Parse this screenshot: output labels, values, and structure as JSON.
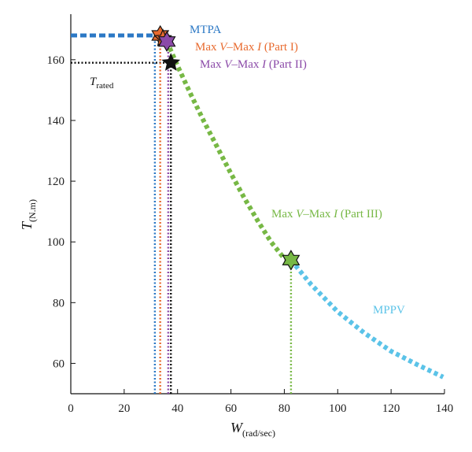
{
  "chart_data": {
    "type": "line",
    "xlabel": "W",
    "xlabel_sub": "(rad/sec)",
    "ylabel": "T",
    "ylabel_sub": "(N.m)",
    "xlim": [
      0,
      140
    ],
    "ylim": [
      50,
      175
    ],
    "x_ticks": [
      0,
      20,
      40,
      60,
      80,
      100,
      120,
      140
    ],
    "y_ticks": [
      60,
      80,
      100,
      120,
      140,
      160
    ],
    "grid": false,
    "series": [
      {
        "name": "Max V–Max I (Part III)",
        "color": "#77b845",
        "style": "dotted",
        "x": [
          36,
          40,
          45,
          50,
          55,
          60,
          65,
          70,
          75,
          80,
          82.5
        ],
        "y": [
          166,
          158,
          148.5,
          139.5,
          131,
          122.5,
          114.5,
          107,
          100,
          94.5,
          94
        ]
      },
      {
        "name": "MPPV",
        "color": "#5bc3e8",
        "style": "dotted",
        "x": [
          82.5,
          90,
          100,
          110,
          120,
          130,
          139.5
        ],
        "y": [
          94,
          86,
          77,
          70,
          64,
          59.5,
          55.5
        ]
      }
    ],
    "points": [
      {
        "name": "MTPA",
        "x": 33.5,
        "y": 168,
        "color": "#e86a2e",
        "marker": "star6"
      },
      {
        "name": "Max V–Max I (Part I)",
        "x": 34.5,
        "y": 167,
        "color": "#e86a2e",
        "marker": "star5"
      },
      {
        "name": "Max V–Max I (Part II)",
        "x": 36,
        "y": 166,
        "color": "#8b4aa8",
        "marker": "star6"
      },
      {
        "name": "T rated",
        "x": 37.5,
        "y": 159,
        "color": "#111111",
        "marker": "star5"
      },
      {
        "name": "Max V–Max I (Part III)",
        "x": 82.5,
        "y": 94,
        "color": "#77b845",
        "marker": "star6"
      }
    ],
    "guides": [
      {
        "kind": "h",
        "y": 168,
        "x0": 0,
        "x1": 33,
        "color": "#2b78c5",
        "style": "dashed-thick"
      },
      {
        "kind": "h",
        "y": 159,
        "x0": 0,
        "x1": 37.5,
        "color": "#111111",
        "style": "dotted"
      },
      {
        "kind": "v",
        "x": 31.5,
        "y0": 50,
        "y1": 168,
        "color": "#2b78c5",
        "style": "dotted"
      },
      {
        "kind": "v",
        "x": 33.5,
        "y0": 50,
        "y1": 167,
        "color": "#e86a2e",
        "style": "dotted"
      },
      {
        "kind": "v",
        "x": 36.5,
        "y0": 50,
        "y1": 166,
        "color": "#8b4aa8",
        "style": "dotted"
      },
      {
        "kind": "v",
        "x": 37.5,
        "y0": 50,
        "y1": 159,
        "color": "#111111",
        "style": "dotted"
      },
      {
        "kind": "v",
        "x": 82.5,
        "y0": 50,
        "y1": 94,
        "color": "#77b845",
        "style": "dotted"
      }
    ],
    "annotations": [
      {
        "id": "mtpa",
        "text": "MTPA",
        "color": "#2b78c5"
      },
      {
        "id": "part1",
        "text": "Max V–Max I (Part I)",
        "color": "#e86a2e"
      },
      {
        "id": "part2",
        "text": "Max V–Max I (Part II)",
        "color": "#8b4aa8"
      },
      {
        "id": "trated",
        "text": "T",
        "sub": "rated",
        "color": "#111111"
      },
      {
        "id": "part3",
        "text": "Max V–Max I (Part III)",
        "color": "#77b845"
      },
      {
        "id": "mppv",
        "text": "MPPV",
        "color": "#5bc3e8"
      }
    ]
  }
}
